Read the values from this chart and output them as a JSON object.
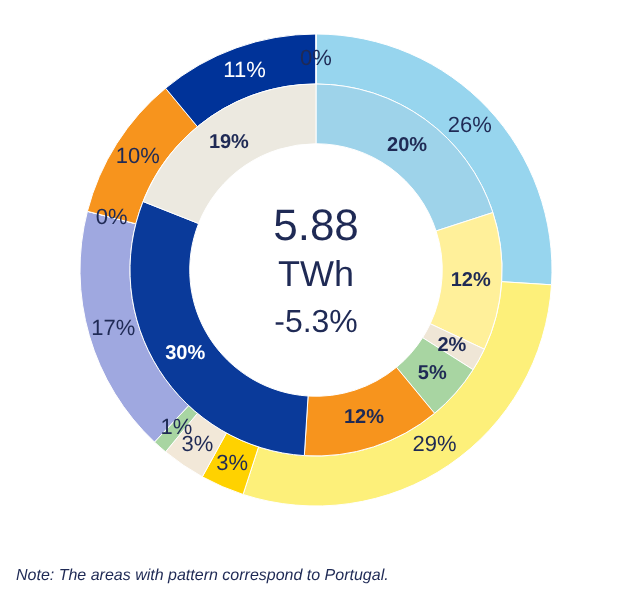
{
  "chart_data": {
    "type": "donut",
    "annotations": [
      "5.88",
      "TWh",
      "-5.3%",
      "Note: The  areas with pattern correspond  to Portugal."
    ],
    "series": [
      {
        "values": [
          26,
          29,
          3,
          3,
          1,
          17,
          0,
          10,
          11,
          0
        ],
        "colors": [
          "#97d5ee",
          "#fdf07a",
          "#ffd200",
          "#f2e8d8",
          "#a8d5a2",
          "#9fa8e0",
          "#c8c8d8",
          "#f7941d",
          "#003399",
          "#d9d9d9"
        ],
        "value_labels": [
          "26%",
          "29%",
          "3%",
          "3%",
          "1%",
          "17%",
          "0%",
          "10%",
          "11%",
          "0%"
        ]
      },
      {
        "values": [
          20,
          12,
          2,
          5,
          12,
          30,
          19
        ],
        "colors": [
          "#9ed3ea",
          "#fff09a",
          "#efe6d6",
          "#a8d5a2",
          "#f7941d",
          "#0a3a9a",
          "#ece9e0"
        ],
        "value_labels": [
          "20%",
          "12%",
          "2%",
          "5%",
          "12%",
          "30%",
          "19%"
        ]
      }
    ]
  }
}
